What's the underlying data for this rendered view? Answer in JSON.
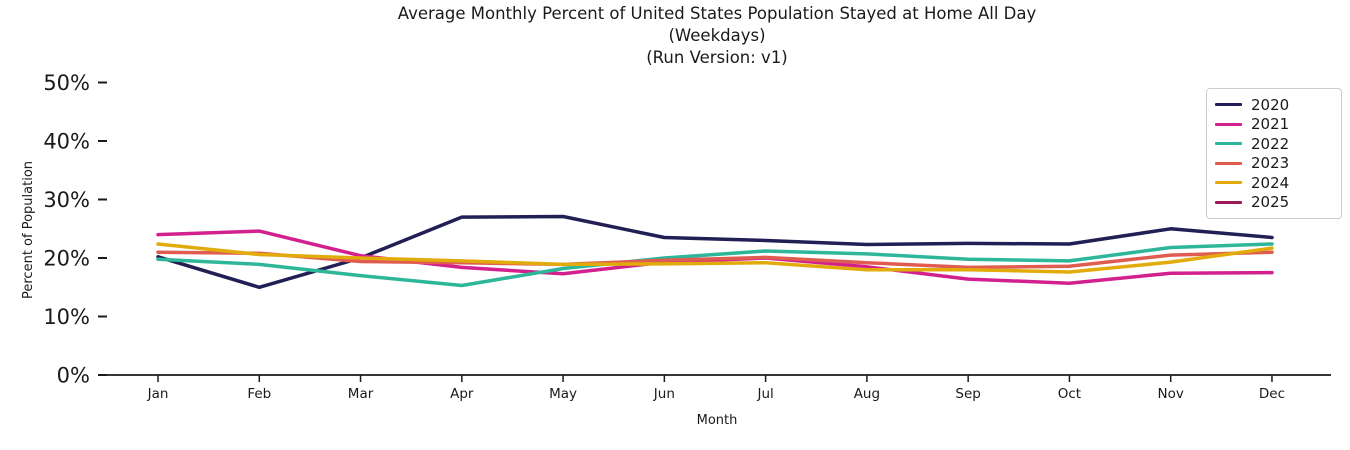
{
  "chart_data": {
    "type": "line",
    "title_lines": [
      "Average Monthly Percent of United States Population Stayed at Home All Day",
      "(Weekdays)",
      "(Run Version: v1)"
    ],
    "xlabel": "Month",
    "ylabel": "Percent of Population",
    "categories": [
      "Jan",
      "Feb",
      "Mar",
      "Apr",
      "May",
      "Jun",
      "Jul",
      "Aug",
      "Sep",
      "Oct",
      "Nov",
      "Dec"
    ],
    "ytick_values": [
      0,
      10,
      20,
      30,
      40,
      50
    ],
    "ytick_labels": [
      "0%",
      "10%",
      "20%",
      "30%",
      "40%",
      "50%"
    ],
    "ylim": [
      0,
      50
    ],
    "grid": false,
    "legend_position": "upper right",
    "series": [
      {
        "name": "2020",
        "color": "#221f54",
        "values": [
          20.2,
          15.0,
          20.0,
          27.0,
          27.1,
          23.5,
          23.0,
          22.3,
          22.5,
          22.4,
          25.0,
          23.5
        ]
      },
      {
        "name": "2021",
        "color": "#d2208e",
        "values": [
          24.0,
          24.6,
          20.4,
          18.4,
          17.3,
          19.3,
          20.0,
          18.5,
          16.4,
          15.7,
          17.4,
          17.5
        ]
      },
      {
        "name": "2022",
        "color": "#2eb69a",
        "values": [
          19.8,
          18.9,
          17.0,
          15.3,
          18.2,
          20.0,
          21.2,
          20.7,
          19.8,
          19.5,
          21.8,
          22.4
        ]
      },
      {
        "name": "2023",
        "color": "#e05c50",
        "values": [
          21.0,
          20.8,
          19.4,
          19.2,
          18.9,
          19.6,
          20.1,
          19.2,
          18.4,
          18.6,
          20.5,
          21.0
        ]
      },
      {
        "name": "2024",
        "color": "#e2ab0c",
        "values": [
          22.4,
          20.6,
          20.0,
          19.5,
          18.9,
          19.0,
          19.2,
          18.0,
          18.0,
          17.6,
          19.3,
          21.7
        ]
      },
      {
        "name": "2025",
        "color": "#9c1a55",
        "values": []
      }
    ]
  }
}
